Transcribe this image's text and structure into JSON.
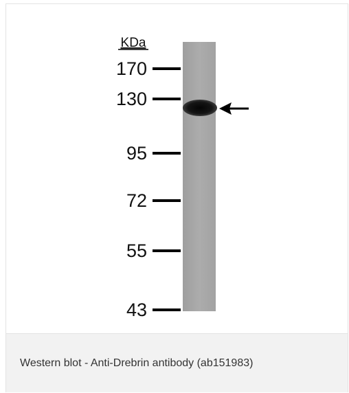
{
  "figure": {
    "unit_label": "KDa",
    "markers": [
      "170",
      "130",
      "95",
      "72",
      "55",
      "43"
    ]
  },
  "caption": "Western blot - Anti-Drebrin antibody (ab151983)"
}
